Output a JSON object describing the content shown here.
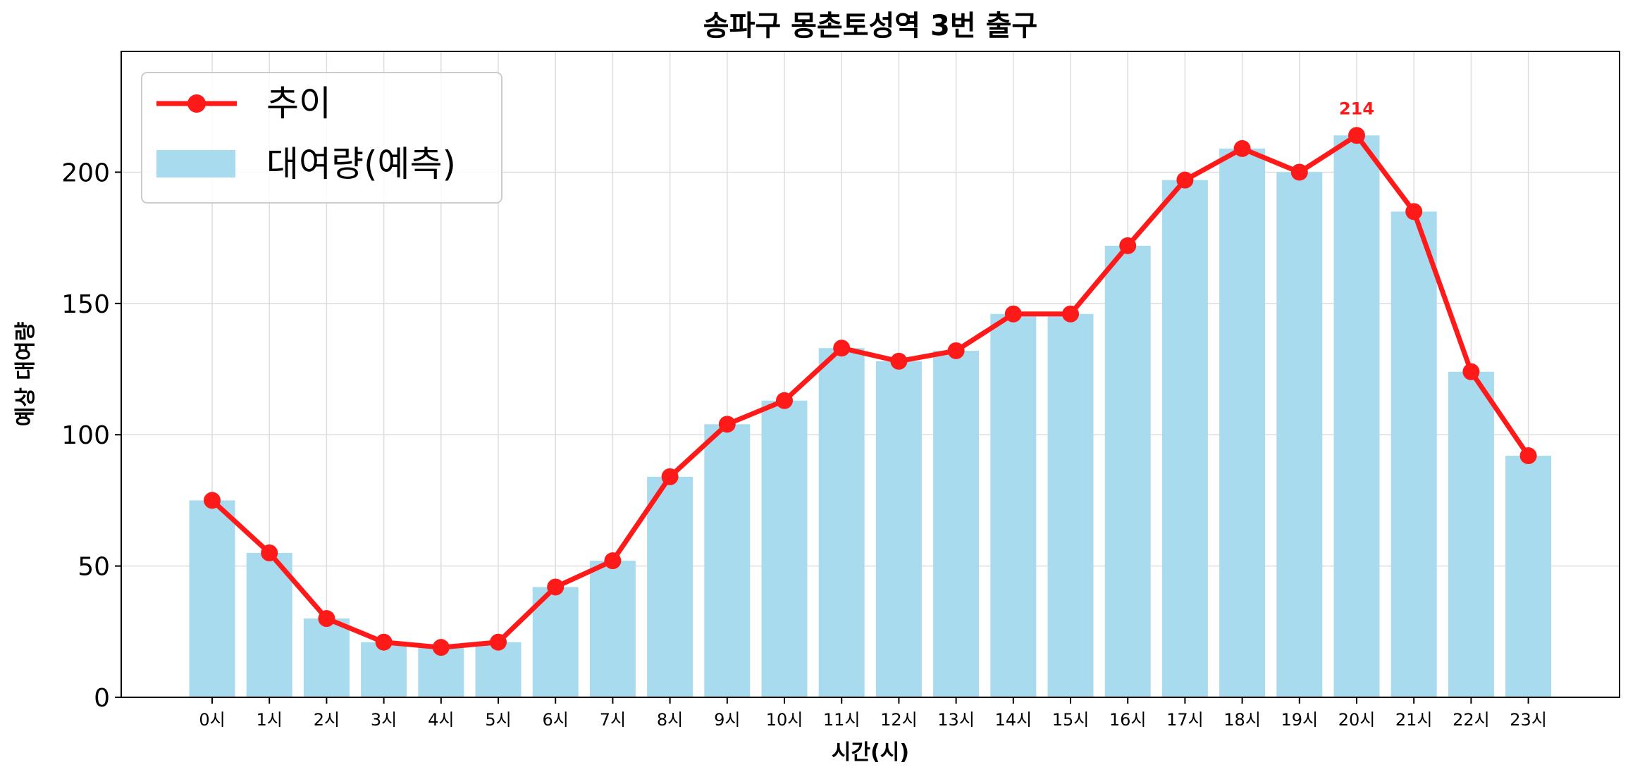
{
  "chart_data": {
    "type": "bar",
    "title": "송파구 몽촌토성역 3번 출구",
    "xlabel": "시간(시)",
    "ylabel": "예상 대여량",
    "categories": [
      "0시",
      "1시",
      "2시",
      "3시",
      "4시",
      "5시",
      "6시",
      "7시",
      "8시",
      "9시",
      "10시",
      "11시",
      "12시",
      "13시",
      "14시",
      "15시",
      "16시",
      "17시",
      "18시",
      "19시",
      "20시",
      "21시",
      "22시",
      "23시"
    ],
    "series": [
      {
        "name": "대여량(예측)",
        "type": "bar",
        "color": "#a9dbee",
        "values": [
          75,
          55,
          30,
          21,
          19,
          21,
          42,
          52,
          84,
          104,
          113,
          133,
          128,
          132,
          146,
          146,
          172,
          197,
          209,
          200,
          214,
          185,
          124,
          92
        ]
      },
      {
        "name": "추이",
        "type": "line",
        "color": "#ff1a1a",
        "values": [
          75,
          55,
          30,
          21,
          19,
          21,
          42,
          52,
          84,
          104,
          113,
          133,
          128,
          132,
          146,
          146,
          172,
          197,
          209,
          200,
          214,
          185,
          124,
          92
        ]
      }
    ],
    "yticks": [
      "0",
      "50",
      "100",
      "150",
      "200"
    ],
    "ylim": [
      0,
      246
    ],
    "grid": true,
    "legend": "upper-left",
    "annotation": {
      "category": "20시",
      "value": 214,
      "text": "214",
      "color": "#ff1a1a"
    }
  }
}
